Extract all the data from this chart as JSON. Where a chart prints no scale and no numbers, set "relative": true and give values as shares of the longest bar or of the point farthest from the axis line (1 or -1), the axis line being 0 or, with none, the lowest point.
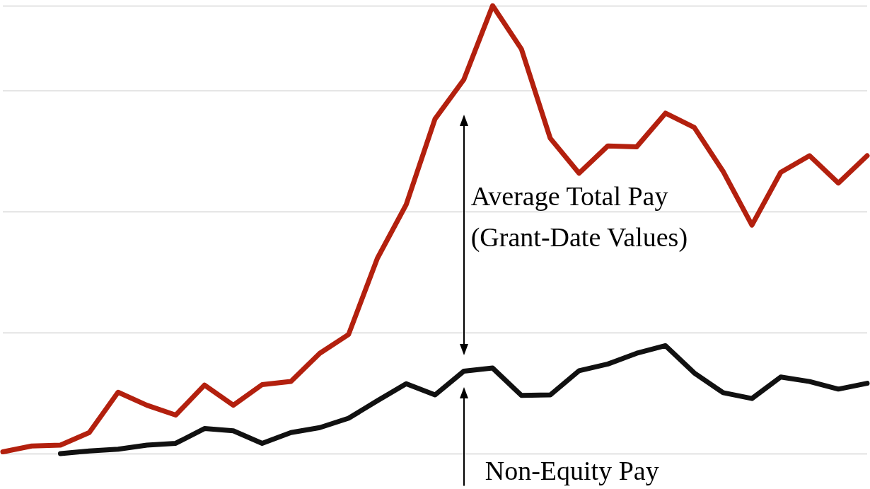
{
  "chart_data": {
    "type": "line",
    "relative": true,
    "grid": "y",
    "categories": [
      null,
      null,
      null,
      null,
      null,
      null,
      null,
      null,
      null,
      null,
      null,
      null,
      null,
      null,
      null,
      null,
      null,
      null,
      null,
      null,
      null,
      null,
      null,
      null,
      null,
      null,
      null,
      null,
      null,
      null,
      null
    ],
    "series": [
      {
        "color": "#b3200e",
        "values": [
          0.004,
          0.017,
          0.019,
          0.047,
          0.137,
          0.108,
          0.086,
          0.153,
          0.108,
          0.154,
          0.161,
          0.224,
          0.266,
          0.436,
          0.556,
          0.747,
          0.835,
          1.0,
          0.903,
          0.704,
          0.626,
          0.687,
          0.685,
          0.76,
          0.728,
          0.63,
          0.51,
          0.628,
          0.665,
          0.604,
          0.665
        ]
      },
      {
        "color": "#111111",
        "values": [
          null,
          null,
          0,
          0.006,
          0.01,
          0.019,
          0.023,
          0.056,
          0.051,
          0.023,
          0.047,
          0.058,
          0.079,
          0.118,
          0.156,
          0.131,
          0.184,
          0.191,
          0.13,
          0.131,
          0.185,
          0.2,
          0.224,
          0.241,
          0.18,
          0.136,
          0.123,
          0.171,
          0.161,
          0.144,
          0.157
        ]
      }
    ],
    "annotations": [
      "Average Total Pay\n(Grant-Date Values)",
      "Non-Equity Pay"
    ]
  }
}
